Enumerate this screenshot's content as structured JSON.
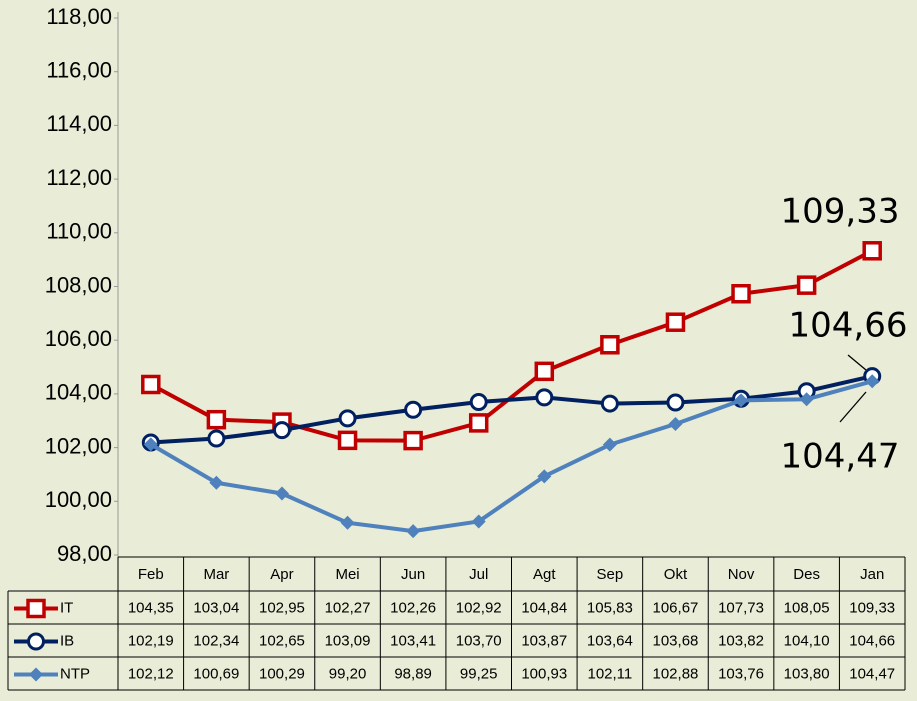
{
  "chart_data": {
    "type": "line",
    "categories": [
      "Feb",
      "Mar",
      "Apr",
      "Mei",
      "Jun",
      "Jul",
      "Agt",
      "Sep",
      "Okt",
      "Nov",
      "Des",
      "Jan"
    ],
    "series": [
      {
        "name": "IT",
        "color": "#c00000",
        "marker": "square",
        "values": [
          104.35,
          103.04,
          102.95,
          102.27,
          102.26,
          102.92,
          104.84,
          105.83,
          106.67,
          107.73,
          108.05,
          109.33
        ],
        "value_labels": [
          "104,35",
          "103,04",
          "102,95",
          "102,27",
          "102,26",
          "102,92",
          "104,84",
          "105,83",
          "106,67",
          "107,73",
          "108,05",
          "109,33"
        ]
      },
      {
        "name": "IB",
        "color": "#002060",
        "marker": "circle",
        "values": [
          102.19,
          102.34,
          102.65,
          103.09,
          103.41,
          103.7,
          103.87,
          103.64,
          103.68,
          103.82,
          104.1,
          104.66
        ],
        "value_labels": [
          "102,19",
          "102,34",
          "102,65",
          "103,09",
          "103,41",
          "103,70",
          "103,87",
          "103,64",
          "103,68",
          "103,82",
          "104,10",
          "104,66"
        ]
      },
      {
        "name": "NTP",
        "color": "#4f81bd",
        "marker": "diamond",
        "values": [
          102.12,
          100.69,
          100.29,
          99.2,
          98.89,
          99.25,
          100.93,
          102.11,
          102.88,
          103.76,
          103.8,
          104.47
        ],
        "value_labels": [
          "102,12",
          "100,69",
          "100,29",
          "99,20",
          "98,89",
          "99,25",
          "100,93",
          "102,11",
          "102,88",
          "103,76",
          "103,80",
          "104,47"
        ]
      }
    ],
    "ylim": [
      98,
      118
    ],
    "yticks": [
      {
        "value": 98,
        "label": "98,00"
      },
      {
        "value": 100,
        "label": "100,00"
      },
      {
        "value": 102,
        "label": "102,00"
      },
      {
        "value": 104,
        "label": "104,00"
      },
      {
        "value": 106,
        "label": "106,00"
      },
      {
        "value": 108,
        "label": "108,00"
      },
      {
        "value": 110,
        "label": "110,00"
      },
      {
        "value": 112,
        "label": "112,00"
      },
      {
        "value": 114,
        "label": "114,00"
      },
      {
        "value": 116,
        "label": "116,00"
      },
      {
        "value": 118,
        "label": "118,00"
      }
    ],
    "annotations": [
      {
        "text": "109,33"
      },
      {
        "text": "104,66"
      },
      {
        "text": "104,47"
      }
    ]
  }
}
